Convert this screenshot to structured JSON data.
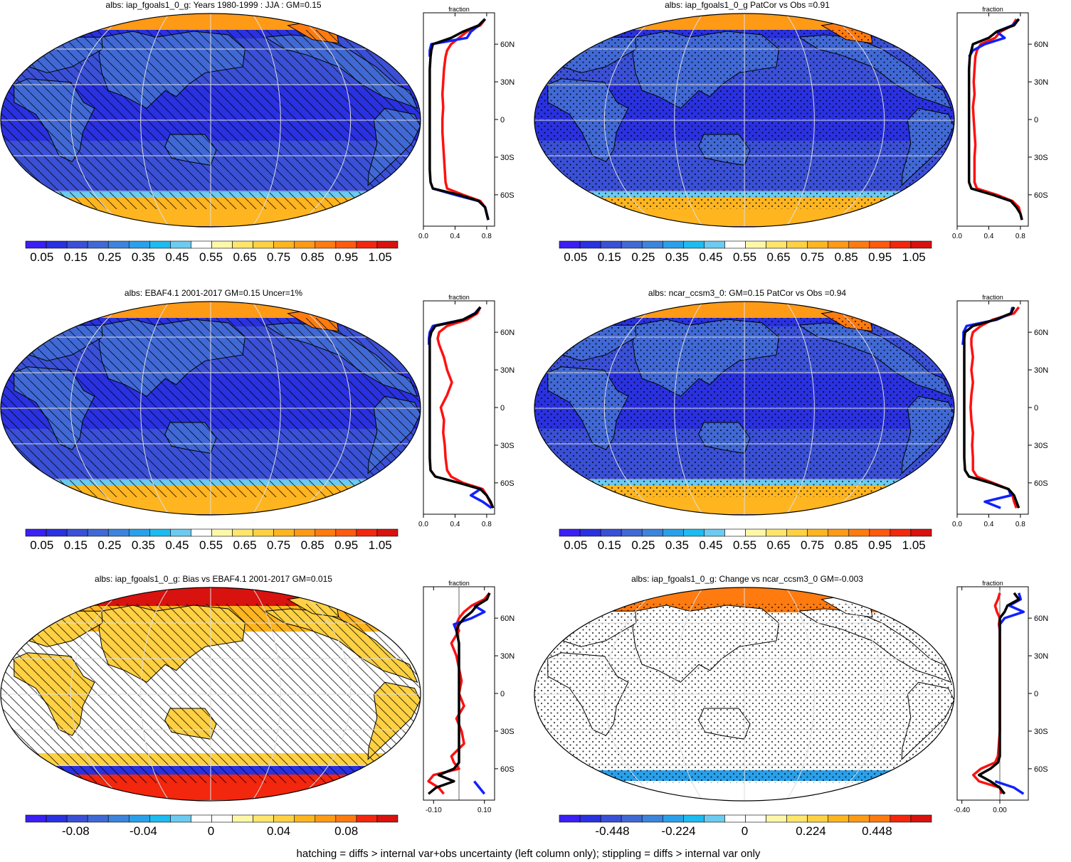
{
  "footer": "hatching = diffs > internal var+obs uncertainty (left column only); stippling = diffs > internal var only",
  "colors": {
    "mean_scale": [
      "#3c1ff4",
      "#2a31e0",
      "#3a50d6",
      "#4169d6",
      "#3d84dc",
      "#2aa0ea",
      "#1cbbf0",
      "#6bcbf0",
      "#ffffff",
      "#fff7a8",
      "#ffe56b",
      "#ffd142",
      "#ffb51f",
      "#ff9a16",
      "#ff7b10",
      "#ff5a0e",
      "#f3260e",
      "#d8120e"
    ],
    "diff_scale": [
      "#3c1ff4",
      "#2a31e0",
      "#3a50d6",
      "#4169d6",
      "#3d84dc",
      "#2aa0ea",
      "#1cbbf0",
      "#6bcbf0",
      "#ffffff",
      "#ffffff",
      "#fff7a8",
      "#ffe56b",
      "#ffd142",
      "#ffb51f",
      "#ff9a16",
      "#ff7b10",
      "#f3260e",
      "#d8120e"
    ],
    "profile_model": "#ff1010",
    "profile_obs": "#1020ff",
    "profile_mean": "#000000"
  },
  "chart_data": [
    {
      "id": "p1",
      "type": "heatmap",
      "title": "albs: iap_fgoals1_0_g: Years 1980-1999 : JJA : GM=0.15",
      "colorbar_labels": [
        "0.05",
        "0.15",
        "0.25",
        "0.35",
        "0.45",
        "0.55",
        "0.65",
        "0.75",
        "0.85",
        "0.95",
        "1.05"
      ],
      "colorbar_values": [
        0.05,
        0.15,
        0.25,
        0.35,
        0.45,
        0.55,
        0.65,
        0.75,
        0.85,
        0.95,
        1.05
      ],
      "colorbar_range": [
        0.0,
        1.1
      ],
      "scale": "mean",
      "overlay": "hatch",
      "profile": {
        "xlabel": "fraction",
        "xlim": [
          0,
          0.9
        ],
        "x_ticks": [
          0.0,
          0.4,
          0.8
        ],
        "x_tick_labels": [
          "0.0",
          "0.4",
          "0.8"
        ],
        "y_ticks": [
          60,
          30,
          0,
          -30,
          -60
        ],
        "y_tick_labels": [
          "60N",
          "30N",
          "0",
          "30S",
          "60S"
        ],
        "lat": [
          80,
          75,
          70,
          65,
          60,
          55,
          50,
          40,
          30,
          20,
          10,
          0,
          -10,
          -20,
          -30,
          -40,
          -50,
          -55,
          -60,
          -65,
          -70,
          -75,
          -80
        ],
        "series": [
          {
            "name": "",
            "role": "model",
            "values": [
              0.78,
              0.72,
              0.55,
              0.45,
              0.35,
              0.3,
              0.28,
              0.26,
              0.25,
              0.24,
              0.25,
              0.24,
              0.24,
              0.25,
              0.26,
              0.27,
              0.28,
              0.3,
              0.5,
              0.72,
              0.78,
              0.8,
              0.82
            ]
          },
          {
            "name": "",
            "role": "obs",
            "values": [
              0.78,
              0.7,
              0.6,
              0.55,
              0.1,
              0.08,
              0.08,
              null,
              null,
              null,
              null,
              null,
              null,
              null,
              null,
              null,
              null,
              0.12,
              0.4,
              0.7,
              0.78,
              0.8,
              0.82
            ]
          },
          {
            "name": "",
            "role": "mean",
            "values": [
              0.78,
              0.7,
              0.5,
              0.35,
              0.12,
              0.1,
              0.09,
              0.08,
              0.08,
              0.08,
              0.08,
              0.08,
              0.08,
              0.08,
              0.08,
              0.08,
              0.09,
              0.12,
              0.45,
              0.7,
              0.78,
              0.8,
              0.82
            ]
          }
        ]
      }
    },
    {
      "id": "p2",
      "type": "heatmap",
      "title": "albs: iap_fgoals1_0_g PatCor vs Obs =0.91",
      "colorbar_labels": [
        "0.05",
        "0.15",
        "0.25",
        "0.35",
        "0.45",
        "0.55",
        "0.65",
        "0.75",
        "0.85",
        "0.95",
        "1.05"
      ],
      "colorbar_values": [
        0.05,
        0.15,
        0.25,
        0.35,
        0.45,
        0.55,
        0.65,
        0.75,
        0.85,
        0.95,
        1.05
      ],
      "colorbar_range": [
        0.0,
        1.1
      ],
      "scale": "mean",
      "overlay": "stipple",
      "profile": {
        "xlabel": "fraction",
        "xlim": [
          0,
          0.9
        ],
        "x_ticks": [
          0.0,
          0.4,
          0.8
        ],
        "x_tick_labels": [
          "0.0",
          "0.4",
          "0.8"
        ],
        "y_ticks": [
          60,
          30,
          0,
          -30,
          -60
        ],
        "y_tick_labels": [
          "60N",
          "30N",
          "0",
          "30S",
          "60S"
        ],
        "lat": [
          80,
          75,
          70,
          65,
          60,
          55,
          50,
          40,
          30,
          20,
          10,
          0,
          -10,
          -20,
          -30,
          -40,
          -50,
          -55,
          -60,
          -65,
          -70,
          -75,
          -80
        ],
        "series": [
          {
            "name": "",
            "role": "model",
            "values": [
              0.75,
              0.7,
              0.55,
              0.48,
              0.3,
              0.25,
              0.23,
              0.22,
              0.21,
              0.22,
              0.2,
              0.21,
              0.22,
              0.23,
              0.22,
              0.22,
              0.22,
              0.25,
              0.5,
              0.7,
              0.78,
              0.8,
              0.82
            ]
          },
          {
            "name": "",
            "role": "obs",
            "values": [
              0.78,
              0.7,
              0.5,
              0.6,
              0.35,
              0.2,
              0.15,
              null,
              null,
              null,
              null,
              null,
              null,
              null,
              null,
              null,
              null,
              null,
              null,
              null,
              null,
              null,
              null
            ]
          },
          {
            "name": "",
            "role": "mean",
            "values": [
              0.78,
              0.72,
              0.5,
              0.4,
              0.2,
              0.18,
              0.16,
              0.15,
              0.15,
              0.15,
              0.15,
              0.15,
              0.15,
              0.15,
              0.15,
              0.15,
              0.15,
              0.18,
              0.45,
              0.68,
              0.75,
              0.8,
              0.82
            ]
          }
        ]
      }
    },
    {
      "id": "p3",
      "type": "heatmap",
      "title": "albs: EBAF4.1 2001-2017 GM=0.15 Uncer=1%",
      "colorbar_labels": [
        "0.05",
        "0.15",
        "0.25",
        "0.35",
        "0.45",
        "0.55",
        "0.65",
        "0.75",
        "0.85",
        "0.95",
        "1.05"
      ],
      "colorbar_values": [
        0.05,
        0.15,
        0.25,
        0.35,
        0.45,
        0.55,
        0.65,
        0.75,
        0.85,
        0.95,
        1.05
      ],
      "colorbar_range": [
        0.0,
        1.1
      ],
      "scale": "mean",
      "overlay": "hatch",
      "profile": {
        "xlabel": "fraction",
        "xlim": [
          0,
          0.9
        ],
        "x_ticks": [
          0.0,
          0.4,
          0.8
        ],
        "x_tick_labels": [
          "0.0",
          "0.4",
          "0.8"
        ],
        "y_ticks": [
          60,
          30,
          0,
          -30,
          -60
        ],
        "y_tick_labels": [
          "60N",
          "30N",
          "0",
          "30S",
          "60S"
        ],
        "lat": [
          80,
          75,
          70,
          65,
          60,
          55,
          50,
          40,
          30,
          20,
          10,
          0,
          -10,
          -20,
          -30,
          -40,
          -50,
          -55,
          -60,
          -65,
          -70,
          -75,
          -80
        ],
        "series": [
          {
            "name": "",
            "role": "model",
            "values": [
              0.72,
              0.68,
              0.55,
              0.3,
              0.2,
              0.18,
              0.2,
              0.26,
              0.3,
              0.36,
              0.3,
              0.22,
              0.26,
              0.25,
              0.27,
              0.28,
              0.3,
              0.35,
              0.5,
              0.75,
              0.8,
              0.84,
              0.88
            ]
          },
          {
            "name": "",
            "role": "obs",
            "values": [
              0.72,
              0.65,
              0.5,
              0.12,
              0.08,
              0.07,
              0.07,
              null,
              null,
              null,
              null,
              null,
              null,
              null,
              null,
              null,
              null,
              null,
              null,
              0.72,
              0.6,
              0.75,
              0.86
            ]
          },
          {
            "name": "",
            "role": "mean",
            "values": [
              0.72,
              0.66,
              0.5,
              0.15,
              0.1,
              0.08,
              0.08,
              0.08,
              0.08,
              0.08,
              0.08,
              0.08,
              0.08,
              0.08,
              0.08,
              0.08,
              0.09,
              0.15,
              0.45,
              0.72,
              0.8,
              0.85,
              0.88
            ]
          }
        ]
      }
    },
    {
      "id": "p4",
      "type": "heatmap",
      "title": "albs: ncar_ccsm3_0: GM=0.15 PatCor vs Obs =0.94",
      "colorbar_labels": [
        "0.05",
        "0.15",
        "0.25",
        "0.35",
        "0.45",
        "0.55",
        "0.65",
        "0.75",
        "0.85",
        "0.95",
        "1.05"
      ],
      "colorbar_values": [
        0.05,
        0.15,
        0.25,
        0.35,
        0.45,
        0.55,
        0.65,
        0.75,
        0.85,
        0.95,
        1.05
      ],
      "colorbar_range": [
        0.0,
        1.1
      ],
      "scale": "mean",
      "overlay": "stipple",
      "profile": {
        "xlabel": "fraction",
        "xlim": [
          0,
          0.9
        ],
        "x_ticks": [
          0.0,
          0.4,
          0.8
        ],
        "x_tick_labels": [
          "0.0",
          "0.4",
          "0.8"
        ],
        "y_ticks": [
          60,
          30,
          0,
          -30,
          -60
        ],
        "y_tick_labels": [
          "60N",
          "30N",
          "0",
          "30S",
          "60S"
        ],
        "lat": [
          80,
          75,
          70,
          65,
          60,
          55,
          50,
          40,
          30,
          20,
          10,
          0,
          -10,
          -20,
          -30,
          -40,
          -50,
          -55,
          -60,
          -65,
          -70,
          -75,
          -80
        ],
        "series": [
          {
            "name": "",
            "role": "model",
            "values": [
              0.78,
              0.72,
              0.45,
              0.3,
              0.2,
              0.18,
              0.18,
              0.2,
              0.18,
              0.2,
              0.18,
              0.17,
              0.18,
              0.2,
              0.19,
              0.2,
              0.2,
              0.25,
              0.45,
              0.65,
              0.7,
              0.72,
              0.75
            ]
          },
          {
            "name": "",
            "role": "obs",
            "values": [
              0.7,
              0.68,
              0.5,
              0.12,
              0.08,
              0.08,
              0.07,
              null,
              null,
              null,
              null,
              null,
              null,
              null,
              null,
              null,
              null,
              null,
              null,
              0.65,
              0.68,
              0.35,
              0.55
            ]
          },
          {
            "name": "",
            "role": "mean",
            "values": [
              0.72,
              0.68,
              0.48,
              0.2,
              0.1,
              0.09,
              0.09,
              0.09,
              0.09,
              0.09,
              0.09,
              0.09,
              0.09,
              0.09,
              0.09,
              0.09,
              0.1,
              0.15,
              0.42,
              0.65,
              0.72,
              0.75,
              0.78
            ]
          }
        ]
      }
    },
    {
      "id": "p5",
      "type": "heatmap",
      "title": "albs: iap_fgoals1_0_g: Bias vs EBAF4.1 2001-2017 GM=0.015",
      "colorbar_labels": [
        "-0.08",
        "-0.04",
        "0",
        "0.04",
        "0.08"
      ],
      "colorbar_values": [
        -0.08,
        -0.04,
        0,
        0.04,
        0.08
      ],
      "colorbar_range": [
        -0.11,
        0.11
      ],
      "scale": "diff",
      "overlay": "hatch",
      "profile": {
        "xlabel": "fraction",
        "xlim": [
          -0.14,
          0.14
        ],
        "x_ticks": [
          -0.1,
          0.1
        ],
        "x_tick_labels": [
          "-0.10",
          "0.10"
        ],
        "y_ticks": [
          60,
          30,
          0,
          -30,
          -60
        ],
        "y_tick_labels": [
          "60N",
          "30N",
          "0",
          "30S",
          "60S"
        ],
        "lat": [
          80,
          75,
          70,
          65,
          60,
          55,
          50,
          40,
          30,
          20,
          10,
          0,
          -10,
          -20,
          -30,
          -40,
          -50,
          -55,
          -60,
          -65,
          -70,
          -75,
          -80
        ],
        "series": [
          {
            "name": "",
            "role": "model",
            "values": [
              0.12,
              0.1,
              0.05,
              0.02,
              0.0,
              -0.01,
              0.0,
              -0.03,
              -0.01,
              0.0,
              0.01,
              0.0,
              0.02,
              -0.01,
              0.01,
              0.02,
              -0.03,
              -0.02,
              0.0,
              -0.1,
              -0.12,
              -0.08,
              -0.06
            ]
          },
          {
            "name": "",
            "role": "obs",
            "values": [
              null,
              null,
              0.06,
              0.1,
              0.05,
              -0.02,
              -0.01,
              null,
              null,
              null,
              null,
              null,
              null,
              null,
              null,
              null,
              null,
              null,
              null,
              null,
              0.06,
              0.08,
              0.1
            ]
          },
          {
            "name": "",
            "role": "mean",
            "values": [
              0.12,
              0.11,
              0.07,
              0.05,
              0.02,
              0.0,
              -0.01,
              0.0,
              0.0,
              0.0,
              0.0,
              0.0,
              0.0,
              0.0,
              0.0,
              0.0,
              0.0,
              0.0,
              -0.02,
              -0.08,
              -0.02,
              -0.09,
              -0.12
            ]
          }
        ]
      }
    },
    {
      "id": "p6",
      "type": "heatmap",
      "title": "albs: iap_fgoals1_0_g: Change vs ncar_ccsm3_0 GM=-0.003",
      "colorbar_labels": [
        "-0.448",
        "-0.224",
        "0",
        "0.224",
        "0.448"
      ],
      "colorbar_values": [
        -0.448,
        -0.224,
        0,
        0.224,
        0.448
      ],
      "colorbar_range": [
        -0.63,
        0.63
      ],
      "scale": "diff",
      "overlay": "stipple",
      "profile": {
        "xlabel": "fraction",
        "xlim": [
          -0.45,
          0.3
        ],
        "x_ticks": [
          -0.4,
          0.0
        ],
        "x_tick_labels": [
          "-0.40",
          "0.00"
        ],
        "y_ticks": [
          60,
          30,
          0,
          -30,
          -60
        ],
        "y_tick_labels": [
          "60N",
          "30N",
          "0",
          "30S",
          "60S"
        ],
        "lat": [
          80,
          75,
          70,
          65,
          60,
          55,
          50,
          40,
          30,
          20,
          10,
          0,
          -10,
          -20,
          -30,
          -40,
          -50,
          -55,
          -60,
          -65,
          -70,
          -75,
          -80
        ],
        "series": [
          {
            "name": "",
            "role": "model",
            "values": [
              0.0,
              -0.02,
              -0.05,
              -0.03,
              0.0,
              -0.01,
              0.0,
              0.0,
              0.0,
              0.0,
              0.0,
              0.0,
              0.0,
              0.0,
              0.0,
              -0.01,
              -0.02,
              -0.05,
              -0.2,
              -0.28,
              -0.22,
              0.0,
              0.02
            ]
          },
          {
            "name": "",
            "role": "obs",
            "values": [
              0.2,
              0.22,
              0.1,
              0.25,
              0.05,
              0.0,
              0.0,
              null,
              null,
              null,
              null,
              null,
              null,
              null,
              null,
              null,
              null,
              null,
              null,
              null,
              -0.05,
              0.15,
              0.25
            ]
          },
          {
            "name": "",
            "role": "mean",
            "values": [
              0.15,
              0.2,
              0.08,
              0.05,
              0.0,
              0.0,
              0.0,
              0.0,
              0.0,
              0.0,
              0.0,
              0.0,
              0.0,
              0.0,
              0.0,
              0.0,
              0.0,
              -0.02,
              -0.1,
              -0.22,
              -0.1,
              0.0,
              0.05
            ]
          }
        ]
      }
    }
  ]
}
